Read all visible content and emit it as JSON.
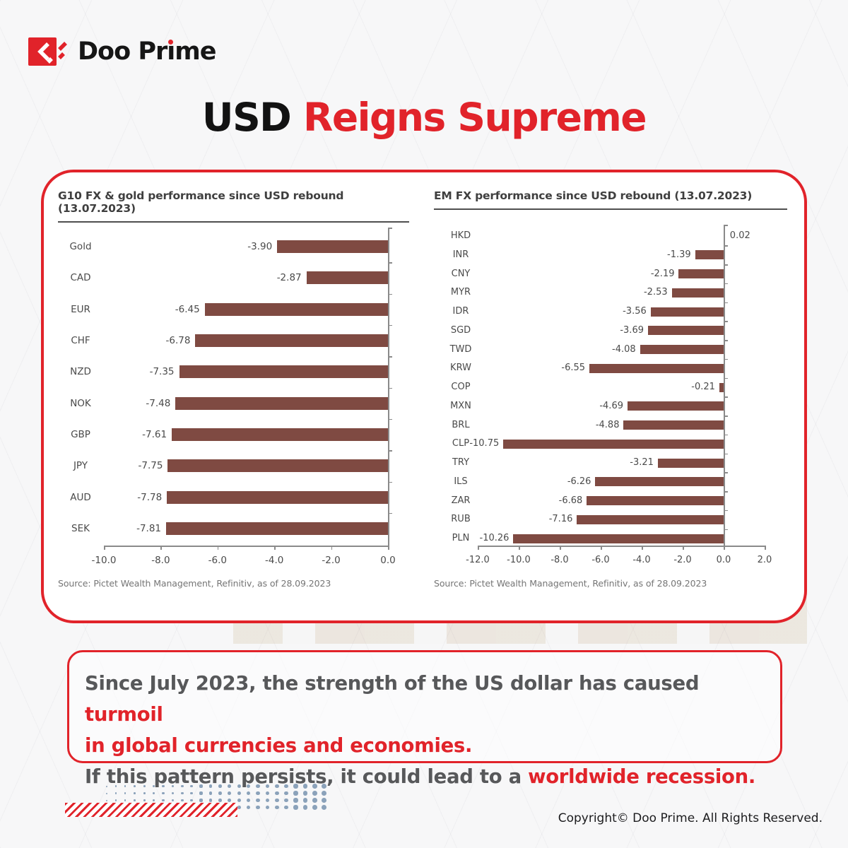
{
  "brand": {
    "logo_text_pre": "Doo Pr",
    "logo_text_i": "ı",
    "logo_text_post": "me",
    "accent": "#e1232a"
  },
  "title": {
    "black": "USD",
    "red": " Reigns Supreme"
  },
  "chart_data": [
    {
      "type": "bar",
      "orientation": "horizontal",
      "title": "G10 FX & gold performance since USD rebound (13.07.2023)",
      "categories": [
        "Gold",
        "CAD",
        "EUR",
        "CHF",
        "NZD",
        "NOK",
        "GBP",
        "JPY",
        "AUD",
        "SEK"
      ],
      "values": [
        -3.9,
        -2.87,
        -6.45,
        -6.78,
        -7.35,
        -7.48,
        -7.61,
        -7.75,
        -7.78,
        -7.81
      ],
      "x_ticks": [
        -10,
        -8,
        -6,
        -4,
        -2,
        0
      ],
      "x_tick_labels": [
        "-10.0",
        "-8.0",
        "-6.0",
        "-4.0",
        "-2.0",
        "0.0"
      ],
      "xlim": [
        -10,
        0.4
      ],
      "bar_color": "#7f4a42",
      "grid": false,
      "legend": "none",
      "source": "Source: Pictet Wealth Management, Refinitiv, as of 28.09.2023"
    },
    {
      "type": "bar",
      "orientation": "horizontal",
      "title": "EM FX performance since USD rebound (13.07.2023)",
      "categories": [
        "HKD",
        "INR",
        "CNY",
        "MYR",
        "IDR",
        "SGD",
        "TWD",
        "KRW",
        "COP",
        "MXN",
        "BRL",
        "CLP",
        "TRY",
        "ILS",
        "ZAR",
        "RUB",
        "PLN"
      ],
      "values": [
        0.02,
        -1.39,
        -2.19,
        -2.53,
        -3.56,
        -3.69,
        -4.08,
        -6.55,
        -0.21,
        -4.69,
        -4.88,
        -10.75,
        -3.21,
        -6.26,
        -6.68,
        -7.16,
        -10.26
      ],
      "x_ticks": [
        -12,
        -10,
        -8,
        -6,
        -4,
        -2,
        0,
        2
      ],
      "x_tick_labels": [
        "-12.0",
        "-10.0",
        "-8.0",
        "-6.0",
        "-4.0",
        "-2.0",
        "0.0",
        "2.0"
      ],
      "xlim": [
        -12,
        2
      ],
      "bar_color": "#7f4a42",
      "grid": false,
      "legend": "none",
      "source": "Source: Pictet Wealth Management, Refinitiv, as of 28.09.2023"
    }
  ],
  "callout": {
    "lines": [
      [
        {
          "text": "Since July 2023, the strength of the US dollar has caused ",
          "red": false
        },
        {
          "text": "turmoil",
          "red": true
        }
      ],
      [
        {
          "text": "in global currencies and economies.",
          "red": true
        }
      ],
      [
        {
          "text": "If this pattern persists, it could lead to a ",
          "red": false
        },
        {
          "text": "worldwide recession.",
          "red": true
        }
      ]
    ]
  },
  "footer": {
    "copyright": "Copyright© Doo Prime. All Rights Reserved."
  },
  "colors": {
    "accent": "#e1232a",
    "bar": "#7f4a42",
    "callout_text": "#57585a",
    "dots": "#8ba2ba"
  }
}
